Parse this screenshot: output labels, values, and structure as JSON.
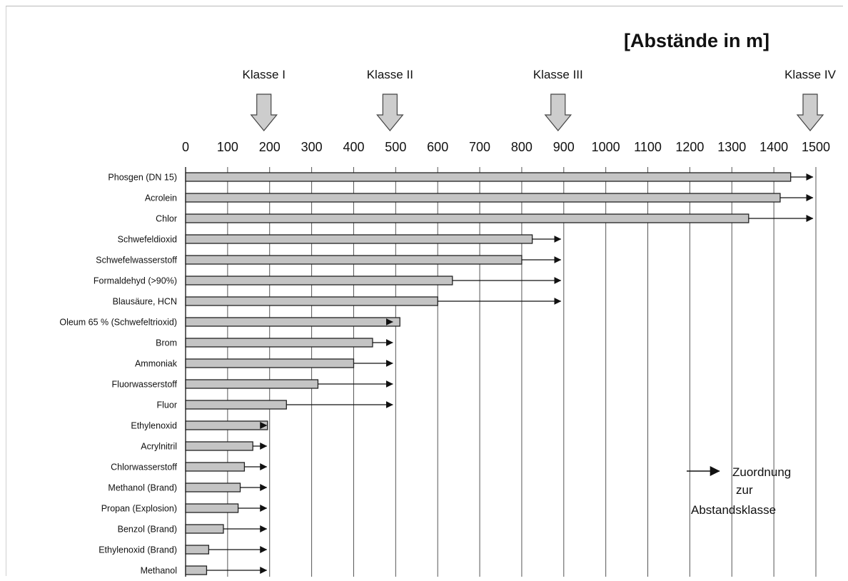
{
  "chart_data": {
    "type": "bar",
    "orientation": "horizontal",
    "title": "[Abstände in m]",
    "xlim": [
      0,
      1500
    ],
    "ticks": [
      0,
      100,
      200,
      300,
      400,
      500,
      600,
      700,
      800,
      900,
      1000,
      1100,
      1200,
      1300,
      1400,
      1500
    ],
    "grid": "vertical",
    "classes": [
      {
        "label": "Klasse I",
        "value": 200
      },
      {
        "label": "Klasse II",
        "value": 500
      },
      {
        "label": "Klasse III",
        "value": 900
      },
      {
        "label": "Klasse IV",
        "value": 1500
      }
    ],
    "categories": [
      "Phosgen (DN 15)",
      "Acrolein",
      "Chlor",
      "Schwefeldioxid",
      "Schwefelwasserstoff",
      "Formaldehyd (>90%)",
      "Blausäure, HCN",
      "Oleum 65 % (Schwefeltrioxid)",
      "Brom",
      "Ammoniak",
      "Fluorwasserstoff",
      "Fluor",
      "Ethylenoxid",
      "Acrylnitril",
      "Chlorwasserstoff",
      "Methanol (Brand)",
      "Propan (Explosion)",
      "Benzol (Brand)",
      "Ethylenoxid (Brand)",
      "Methanol"
    ],
    "values": [
      1440,
      1415,
      1340,
      825,
      800,
      635,
      600,
      510,
      445,
      400,
      315,
      240,
      195,
      160,
      140,
      130,
      125,
      90,
      55,
      50
    ],
    "class_assignment": [
      1500,
      1500,
      1500,
      900,
      900,
      900,
      900,
      500,
      500,
      500,
      500,
      500,
      200,
      200,
      200,
      200,
      200,
      200,
      200,
      200
    ],
    "legend": {
      "position": "bottom-right",
      "lines": [
        "Zuordnung",
        "zur",
        "Abstandsklasse"
      ]
    },
    "colors": {
      "bar": "#c4c4c4",
      "edge": "#222222",
      "grid": "#555555",
      "arrow_fill": "#cdcdcd"
    }
  }
}
